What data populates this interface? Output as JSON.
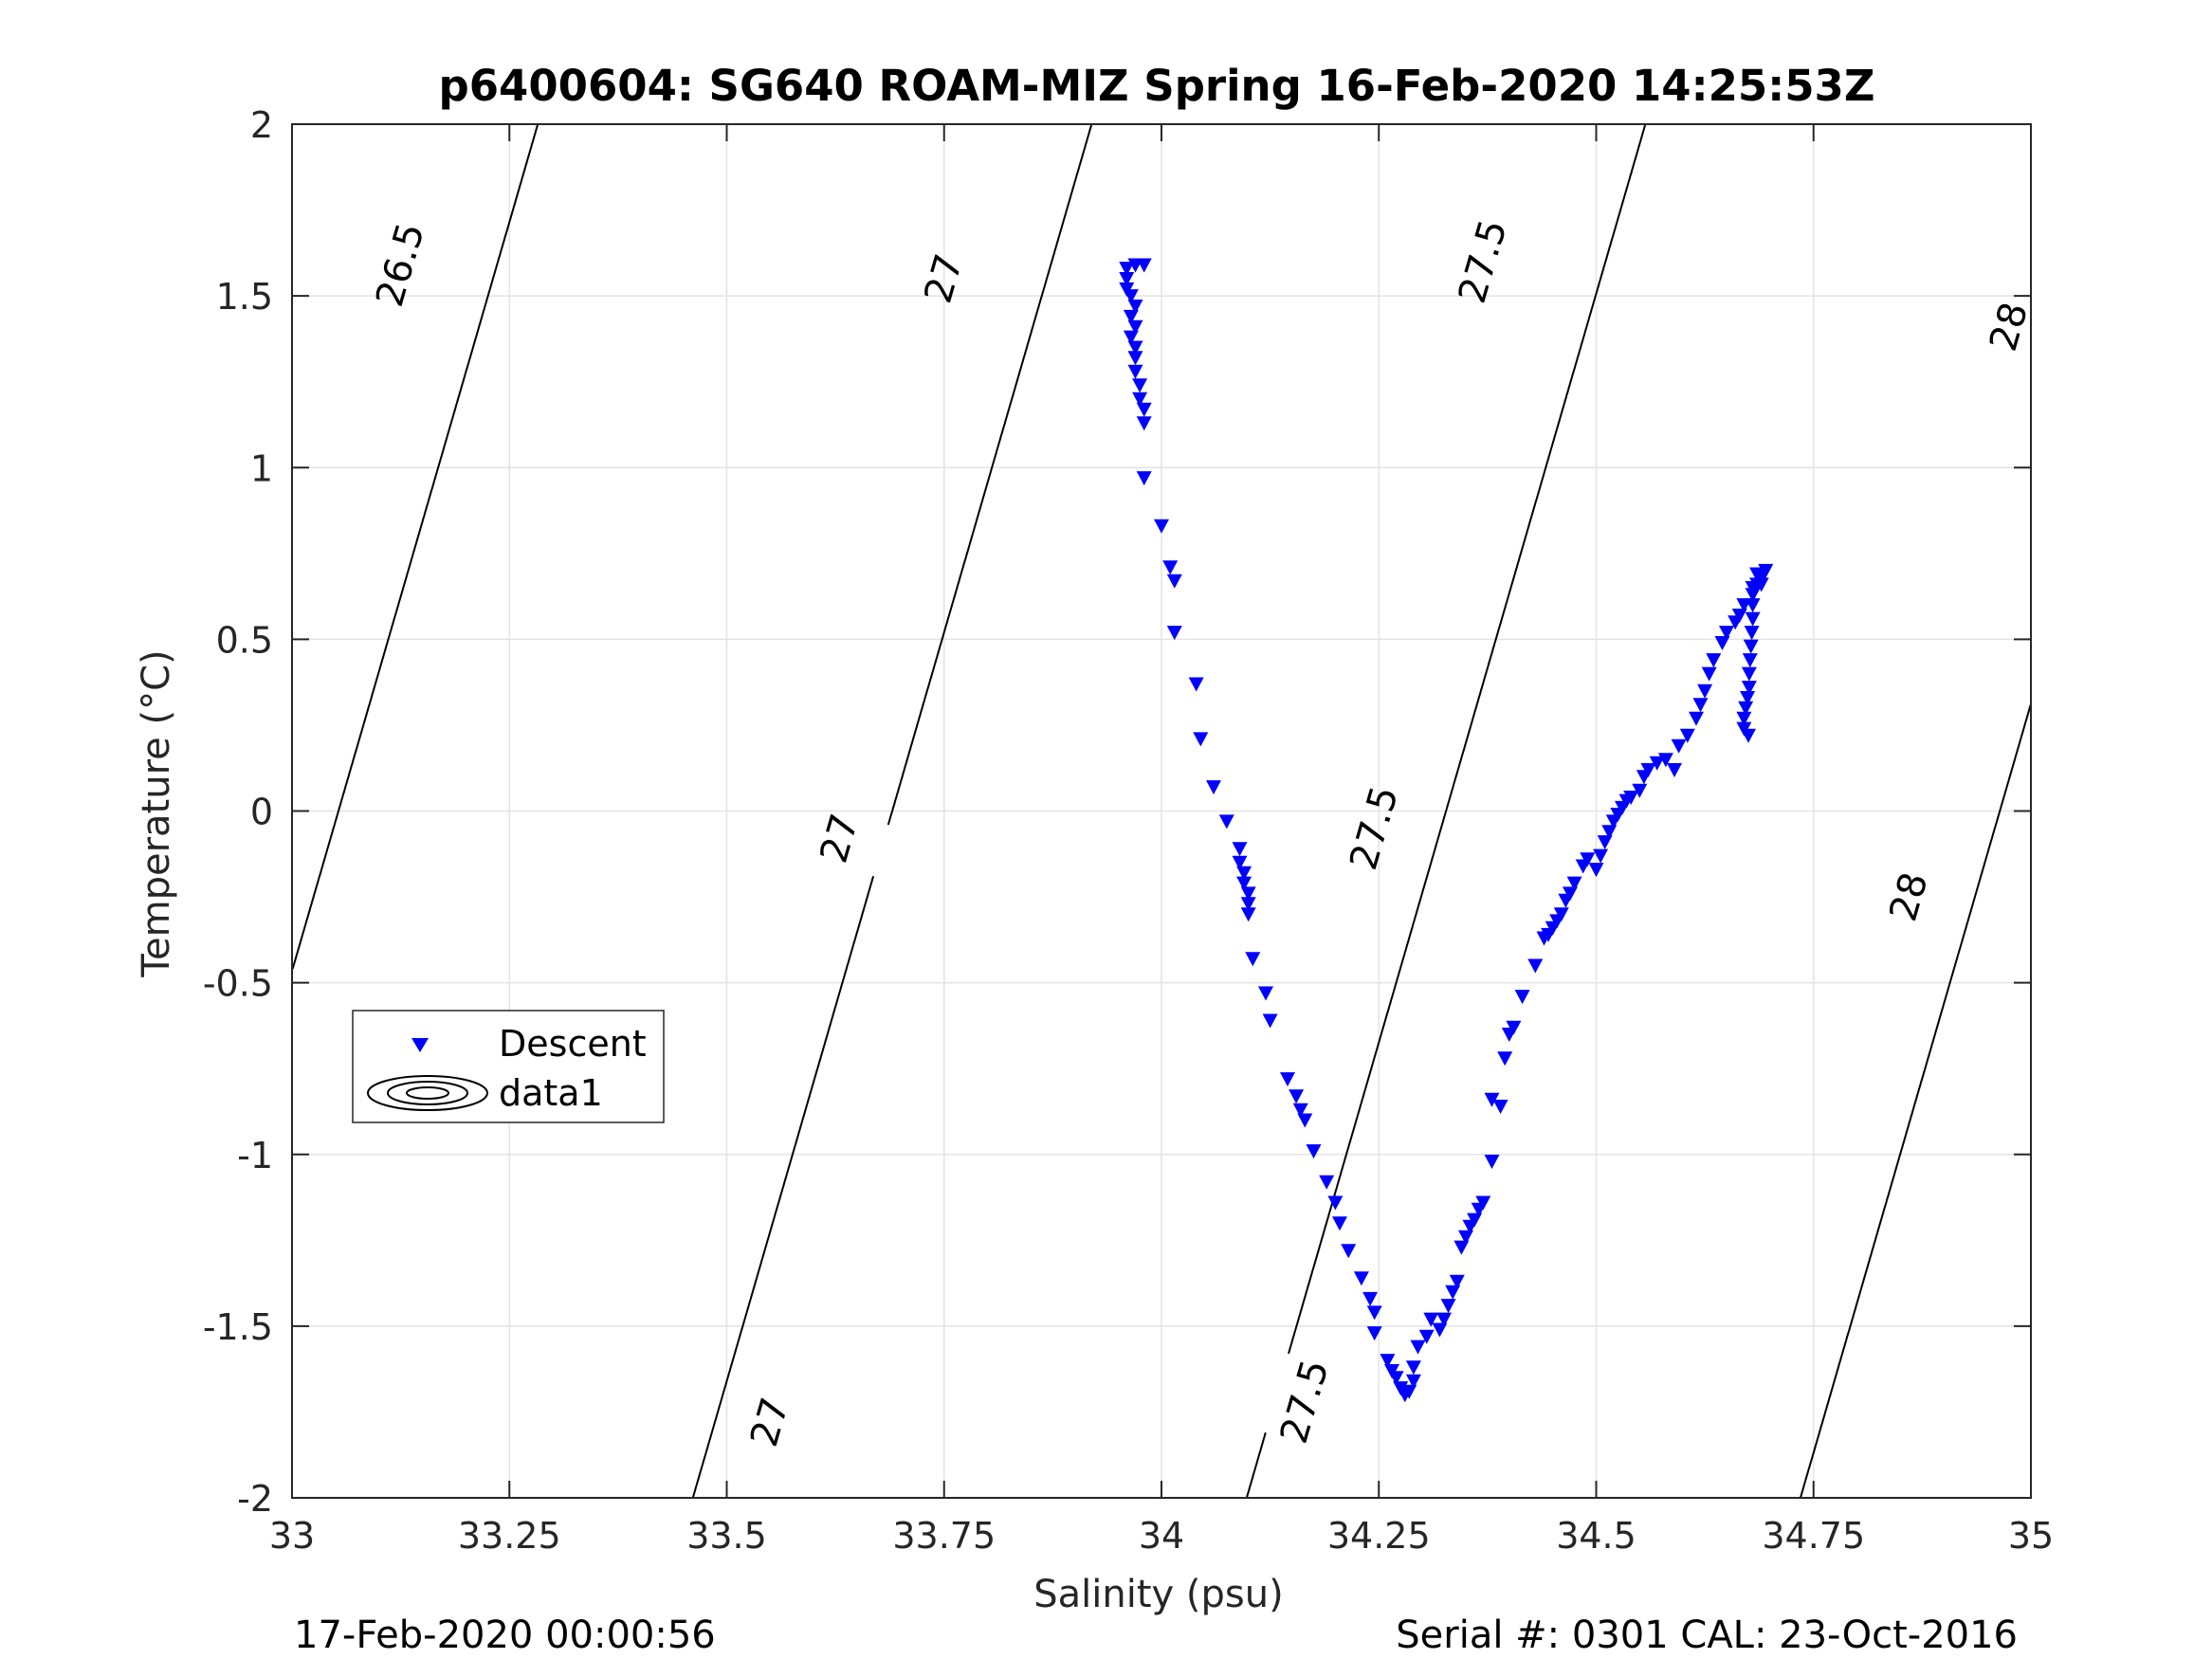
{
  "chart_data": {
    "type": "scatter",
    "title": "p6400604: SG640 ROAM-MIZ Spring 16-Feb-2020 14:25:53Z",
    "xlabel": "Salinity (psu)",
    "ylabel": "Temperature (°C)",
    "xlim": [
      33,
      35
    ],
    "ylim": [
      -2,
      2
    ],
    "xticks": [
      33,
      33.25,
      33.5,
      33.75,
      34,
      34.25,
      34.5,
      34.75,
      35
    ],
    "xtick_labels": [
      "33",
      "33.25",
      "33.5",
      "33.75",
      "34",
      "34.25",
      "34.5",
      "34.75",
      "35"
    ],
    "yticks": [
      -2,
      -1.5,
      -1,
      -0.5,
      0,
      0.5,
      1,
      1.5,
      2
    ],
    "ytick_labels": [
      "-2",
      "-1.5",
      "-1",
      "-0.5",
      "0",
      "0.5",
      "1",
      "1.5",
      "2"
    ],
    "grid": true,
    "legend": {
      "placement": "lower-left",
      "entries": [
        {
          "label": "Descent",
          "marker": "down-triangle",
          "color": "#0000ff"
        },
        {
          "label": "data1",
          "marker": "contour",
          "color": "#000000"
        }
      ]
    },
    "series": [
      {
        "name": "Descent",
        "marker": "down-triangle",
        "color": "#0000ff",
        "points": [
          [
            33.96,
            1.58
          ],
          [
            33.97,
            1.59
          ],
          [
            33.98,
            1.59
          ],
          [
            33.96,
            1.55
          ],
          [
            33.96,
            1.52
          ],
          [
            33.965,
            1.5
          ],
          [
            33.97,
            1.47
          ],
          [
            33.965,
            1.44
          ],
          [
            33.97,
            1.41
          ],
          [
            33.965,
            1.38
          ],
          [
            33.97,
            1.35
          ],
          [
            33.97,
            1.32
          ],
          [
            33.97,
            1.28
          ],
          [
            33.975,
            1.24
          ],
          [
            33.975,
            1.2
          ],
          [
            33.98,
            1.17
          ],
          [
            33.98,
            1.13
          ],
          [
            33.98,
            0.97
          ],
          [
            34.0,
            0.83
          ],
          [
            34.01,
            0.71
          ],
          [
            34.015,
            0.67
          ],
          [
            34.015,
            0.52
          ],
          [
            34.04,
            0.37
          ],
          [
            34.045,
            0.21
          ],
          [
            34.06,
            0.07
          ],
          [
            34.075,
            -0.03
          ],
          [
            34.09,
            -0.11
          ],
          [
            34.09,
            -0.15
          ],
          [
            34.095,
            -0.18
          ],
          [
            34.095,
            -0.21
          ],
          [
            34.1,
            -0.24
          ],
          [
            34.1,
            -0.27
          ],
          [
            34.1,
            -0.3
          ],
          [
            34.105,
            -0.43
          ],
          [
            34.12,
            -0.53
          ],
          [
            34.125,
            -0.61
          ],
          [
            34.145,
            -0.78
          ],
          [
            34.155,
            -0.83
          ],
          [
            34.16,
            -0.87
          ],
          [
            34.165,
            -0.9
          ],
          [
            34.175,
            -0.99
          ],
          [
            34.19,
            -1.08
          ],
          [
            34.2,
            -1.14
          ],
          [
            34.205,
            -1.2
          ],
          [
            34.215,
            -1.28
          ],
          [
            34.23,
            -1.36
          ],
          [
            34.24,
            -1.42
          ],
          [
            34.245,
            -1.46
          ],
          [
            34.245,
            -1.52
          ],
          [
            34.26,
            -1.6
          ],
          [
            34.265,
            -1.63
          ],
          [
            34.27,
            -1.65
          ],
          [
            34.275,
            -1.68
          ],
          [
            34.28,
            -1.7
          ],
          [
            34.285,
            -1.69
          ],
          [
            34.29,
            -1.66
          ],
          [
            34.29,
            -1.62
          ],
          [
            34.295,
            -1.56
          ],
          [
            34.305,
            -1.53
          ],
          [
            34.31,
            -1.48
          ],
          [
            34.32,
            -1.51
          ],
          [
            34.325,
            -1.48
          ],
          [
            34.33,
            -1.44
          ],
          [
            34.335,
            -1.4
          ],
          [
            34.34,
            -1.37
          ],
          [
            34.345,
            -1.27
          ],
          [
            34.35,
            -1.24
          ],
          [
            34.355,
            -1.21
          ],
          [
            34.36,
            -1.19
          ],
          [
            34.365,
            -1.16
          ],
          [
            34.37,
            -1.14
          ],
          [
            34.38,
            -1.02
          ],
          [
            34.38,
            -0.84
          ],
          [
            34.39,
            -0.86
          ],
          [
            34.395,
            -0.72
          ],
          [
            34.4,
            -0.65
          ],
          [
            34.405,
            -0.63
          ],
          [
            34.415,
            -0.54
          ],
          [
            34.43,
            -0.45
          ],
          [
            34.44,
            -0.37
          ],
          [
            34.445,
            -0.36
          ],
          [
            34.45,
            -0.34
          ],
          [
            34.455,
            -0.32
          ],
          [
            34.46,
            -0.3
          ],
          [
            34.465,
            -0.26
          ],
          [
            34.47,
            -0.24
          ],
          [
            34.475,
            -0.21
          ],
          [
            34.485,
            -0.16
          ],
          [
            34.49,
            -0.14
          ],
          [
            34.5,
            -0.17
          ],
          [
            34.505,
            -0.13
          ],
          [
            34.51,
            -0.09
          ],
          [
            34.515,
            -0.06
          ],
          [
            34.52,
            -0.03
          ],
          [
            34.525,
            -0.01
          ],
          [
            34.53,
            0.01
          ],
          [
            34.535,
            0.03
          ],
          [
            34.54,
            0.04
          ],
          [
            34.55,
            0.06
          ],
          [
            34.555,
            0.1
          ],
          [
            34.56,
            0.12
          ],
          [
            34.57,
            0.14
          ],
          [
            34.58,
            0.15
          ],
          [
            34.59,
            0.12
          ],
          [
            34.595,
            0.19
          ],
          [
            34.605,
            0.22
          ],
          [
            34.615,
            0.27
          ],
          [
            34.62,
            0.31
          ],
          [
            34.625,
            0.35
          ],
          [
            34.63,
            0.4
          ],
          [
            34.635,
            0.44
          ],
          [
            34.645,
            0.49
          ],
          [
            34.65,
            0.52
          ],
          [
            34.66,
            0.55
          ],
          [
            34.665,
            0.57
          ],
          [
            34.67,
            0.6
          ],
          [
            34.68,
            0.63
          ],
          [
            34.685,
            0.66
          ],
          [
            34.69,
            0.68
          ],
          [
            34.695,
            0.7
          ],
          [
            34.67,
            0.24
          ],
          [
            34.67,
            0.27
          ],
          [
            34.672,
            0.3
          ],
          [
            34.674,
            0.33
          ],
          [
            34.676,
            0.36
          ],
          [
            34.676,
            0.4
          ],
          [
            34.677,
            0.44
          ],
          [
            34.678,
            0.48
          ],
          [
            34.679,
            0.52
          ],
          [
            34.68,
            0.56
          ],
          [
            34.68,
            0.6
          ],
          [
            34.68,
            0.65
          ],
          [
            34.685,
            0.69
          ],
          [
            34.69,
            0.66
          ],
          [
            34.675,
            0.22
          ]
        ]
      },
      {
        "name": "data1",
        "type": "contour",
        "color": "#000000",
        "levels": [
          26.5,
          27,
          27.5,
          28
        ]
      }
    ],
    "contour_labels": [
      {
        "text": "26.5",
        "at": [
          33.125,
          1.59
        ]
      },
      {
        "text": "27",
        "at": [
          33.75,
          1.55
        ]
      },
      {
        "text": "27",
        "at": [
          33.63,
          -0.08
        ]
      },
      {
        "text": "27",
        "at": [
          33.55,
          -1.78
        ]
      },
      {
        "text": "27.5",
        "at": [
          34.37,
          1.6
        ]
      },
      {
        "text": "27.5",
        "at": [
          34.245,
          -0.05
        ]
      },
      {
        "text": "27.5",
        "at": [
          34.165,
          -1.72
        ]
      },
      {
        "text": "28",
        "at": [
          34.975,
          1.41
        ]
      },
      {
        "text": "28",
        "at": [
          34.86,
          -0.25
        ]
      }
    ]
  },
  "footer": {
    "timestamp": "17-Feb-2020 00:00:56",
    "serial": "Serial #: 0301  CAL: 23-Oct-2016"
  }
}
